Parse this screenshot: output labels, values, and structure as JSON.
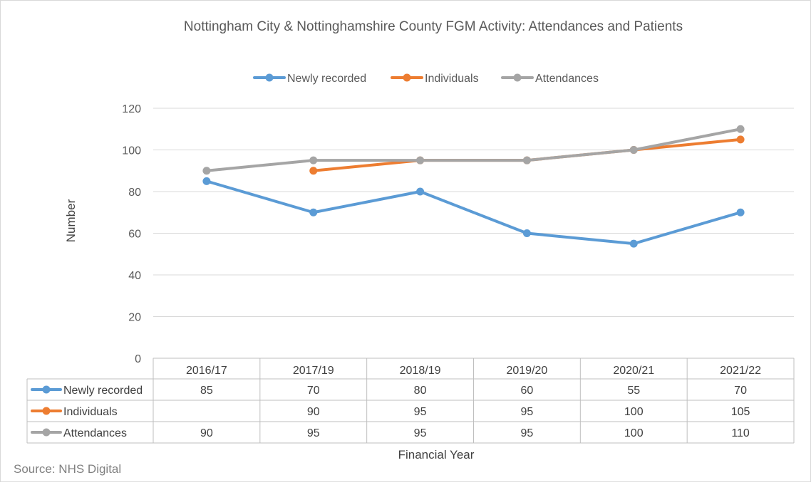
{
  "chart_data": {
    "type": "line",
    "title": "Nottingham City & Nottinghamshire County FGM Activity: Attendances and Patients",
    "xlabel": "Financial Year",
    "ylabel": "Number",
    "ylim": [
      0,
      120
    ],
    "yticks": [
      0,
      20,
      40,
      60,
      80,
      100,
      120
    ],
    "grid": true,
    "legend": "top-center",
    "categories": [
      "2016/17",
      "2017/19",
      "2018/19",
      "2019/20",
      "2020/21",
      "2021/22"
    ],
    "series": [
      {
        "name": "Newly recorded",
        "color": "#5b9bd5",
        "values": [
          85,
          70,
          80,
          60,
          55,
          70
        ]
      },
      {
        "name": "Individuals",
        "color": "#ed7d31",
        "values": [
          null,
          90,
          95,
          95,
          100,
          105
        ]
      },
      {
        "name": "Attendances",
        "color": "#a5a5a5",
        "values": [
          90,
          95,
          95,
          95,
          100,
          110
        ]
      }
    ],
    "source": "Source: NHS Digital"
  }
}
